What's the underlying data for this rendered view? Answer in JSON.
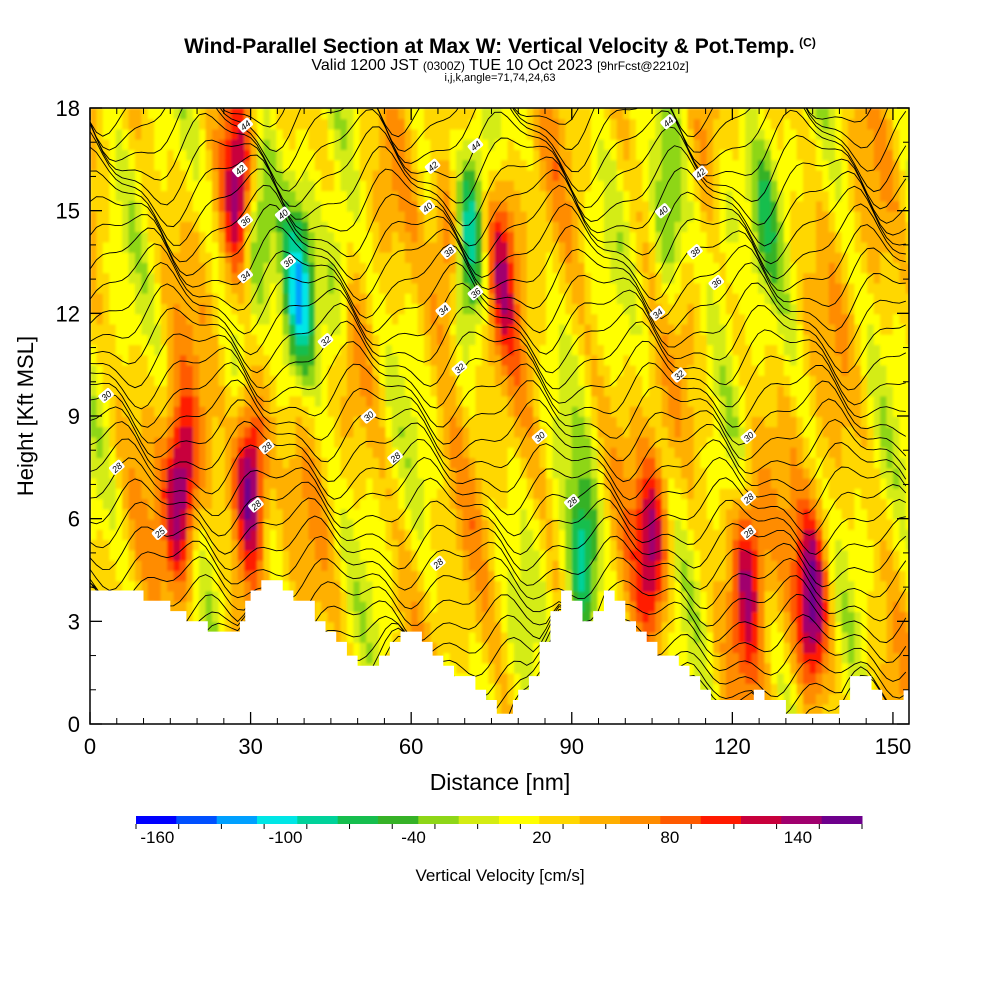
{
  "title": "Wind-Parallel Section at Max W: Vertical Velocity & Pot.Temp.",
  "title_mark": "(C)",
  "subtitle": {
    "valid": "Valid 1200 JST",
    "utc": "(0300Z)",
    "date": "TUE 10 Oct 2023",
    "fcst": "[9hrFcst@2210z]"
  },
  "subtitle2": "i,j,k,angle=71,74,24,63",
  "chart_data": {
    "type": "heatmap",
    "xlabel": "Distance [nm]",
    "ylabel": "Height [Kft MSL]",
    "xlim": [
      0,
      153
    ],
    "ylim": [
      0,
      18
    ],
    "x_ticks": [
      "0",
      "30",
      "60",
      "90",
      "120",
      "150"
    ],
    "y_ticks": [
      "0",
      "3",
      "6",
      "9",
      "12",
      "15",
      "18"
    ],
    "colorbar": {
      "label": "Vertical Velocity [cm/s]",
      "range": [
        -170,
        170
      ],
      "tick_labels": [
        "-160",
        "-100",
        "-40",
        "20",
        "80",
        "140"
      ],
      "colors": [
        "#0000ff",
        "#0050ff",
        "#00a0ff",
        "#00e6e6",
        "#00d29a",
        "#16be4e",
        "#36b227",
        "#8ed618",
        "#d4ec12",
        "#ffff00",
        "#ffd700",
        "#ffb000",
        "#ff8c00",
        "#ff5a00",
        "#ff1a00",
        "#c8003c",
        "#a0006e",
        "#6e008c"
      ]
    },
    "updrafts_cm_s": [
      {
        "x": 17,
        "y": 6.8,
        "w": 140
      },
      {
        "x": 30,
        "y": 7.2,
        "w": 160
      },
      {
        "x": 28,
        "y": 15.5,
        "w": 110
      },
      {
        "x": 67,
        "y": 14.0,
        "w": 90
      },
      {
        "x": 77,
        "y": 13.5,
        "w": 80
      },
      {
        "x": 105,
        "y": 5.3,
        "w": 110
      },
      {
        "x": 123,
        "y": 4.5,
        "w": 110
      },
      {
        "x": 135,
        "y": 3.6,
        "w": 130
      }
    ],
    "downdrafts_cm_s": [
      {
        "x": 31,
        "y": 14.5,
        "w": -100
      },
      {
        "x": 39,
        "y": 12.5,
        "w": -110
      },
      {
        "x": 46,
        "y": 13.0,
        "w": -60
      },
      {
        "x": 71,
        "y": 14.5,
        "w": -110
      },
      {
        "x": 92,
        "y": 4.5,
        "w": -110
      },
      {
        "x": 108,
        "y": 14.5,
        "w": -70
      },
      {
        "x": 119,
        "y": 15.0,
        "w": -50
      },
      {
        "x": 126,
        "y": 15.0,
        "w": -50
      }
    ],
    "terrain_kft": {
      "x": [
        0,
        9,
        10,
        14,
        15,
        17,
        18,
        20,
        22,
        25,
        28,
        29,
        30,
        32,
        34,
        36,
        38,
        42,
        44,
        46,
        48,
        50,
        52,
        54,
        56,
        58,
        60,
        62,
        64,
        66,
        68,
        70,
        72,
        74,
        76,
        77,
        78,
        79,
        80,
        82,
        84,
        86,
        88,
        90,
        92,
        94,
        96,
        98,
        100,
        102,
        104,
        106,
        108,
        110,
        112,
        114,
        116,
        118,
        120,
        122,
        124,
        126,
        128,
        130,
        132,
        134,
        136,
        138,
        140,
        142,
        144,
        146,
        148,
        150,
        152,
        153
      ],
      "y": [
        3.9,
        3.9,
        3.6,
        3.6,
        3.3,
        3.3,
        3.0,
        3.0,
        2.7,
        2.7,
        3.0,
        3.6,
        3.9,
        4.2,
        4.2,
        3.9,
        3.6,
        3.0,
        2.7,
        2.4,
        2.0,
        1.7,
        1.7,
        2.0,
        2.4,
        2.7,
        2.7,
        2.4,
        2.0,
        1.7,
        1.4,
        1.4,
        1.0,
        0.7,
        0.3,
        0.3,
        0.3,
        0.7,
        1.0,
        1.4,
        2.4,
        3.3,
        3.9,
        3.6,
        3.0,
        3.3,
        3.9,
        3.6,
        3.0,
        2.7,
        2.4,
        2.0,
        2.0,
        1.7,
        1.4,
        1.0,
        0.7,
        0.7,
        0.7,
        0.7,
        1.0,
        0.7,
        0.7,
        0.3,
        0.3,
        0.3,
        0.3,
        0.3,
        0.7,
        1.4,
        1.4,
        1.0,
        0.7,
        0.7,
        1.0,
        1.0
      ]
    },
    "isentropes": {
      "label_values_C": [
        "25",
        "28",
        "28",
        "28",
        "28",
        "28",
        "28",
        "30",
        "30",
        "30",
        "30",
        "32",
        "32",
        "32",
        "34",
        "34",
        "34",
        "36",
        "36",
        "36",
        "36",
        "38",
        "38",
        "40",
        "40",
        "40",
        "42",
        "42",
        "42",
        "44",
        "44",
        "44"
      ],
      "label_points": [
        [
          13,
          5.6
        ],
        [
          5,
          7.5
        ],
        [
          31,
          6.4
        ],
        [
          33,
          8.1
        ],
        [
          57,
          7.8
        ],
        [
          65,
          4.7
        ],
        [
          90,
          6.5
        ],
        [
          3,
          9.6
        ],
        [
          52,
          9.0
        ],
        [
          84,
          8.4
        ],
        [
          123,
          8.4
        ],
        [
          44,
          11.2
        ],
        [
          69,
          10.4
        ],
        [
          110,
          10.2
        ],
        [
          29,
          13.1
        ],
        [
          66,
          12.1
        ],
        [
          106,
          12.0
        ],
        [
          29,
          14.7
        ],
        [
          37,
          13.5
        ],
        [
          72,
          12.6
        ],
        [
          117,
          12.9
        ],
        [
          67,
          13.8
        ],
        [
          113,
          13.8
        ],
        [
          36,
          14.9
        ],
        [
          63,
          15.1
        ],
        [
          107,
          15.0
        ],
        [
          28,
          16.2
        ],
        [
          64,
          16.3
        ],
        [
          114,
          16.1
        ],
        [
          29,
          17.5
        ],
        [
          72,
          16.9
        ],
        [
          108,
          17.6
        ]
      ],
      "extra_labels": [
        [
          123,
          6.6,
          "28"
        ],
        [
          123,
          5.6,
          "28"
        ]
      ]
    }
  }
}
